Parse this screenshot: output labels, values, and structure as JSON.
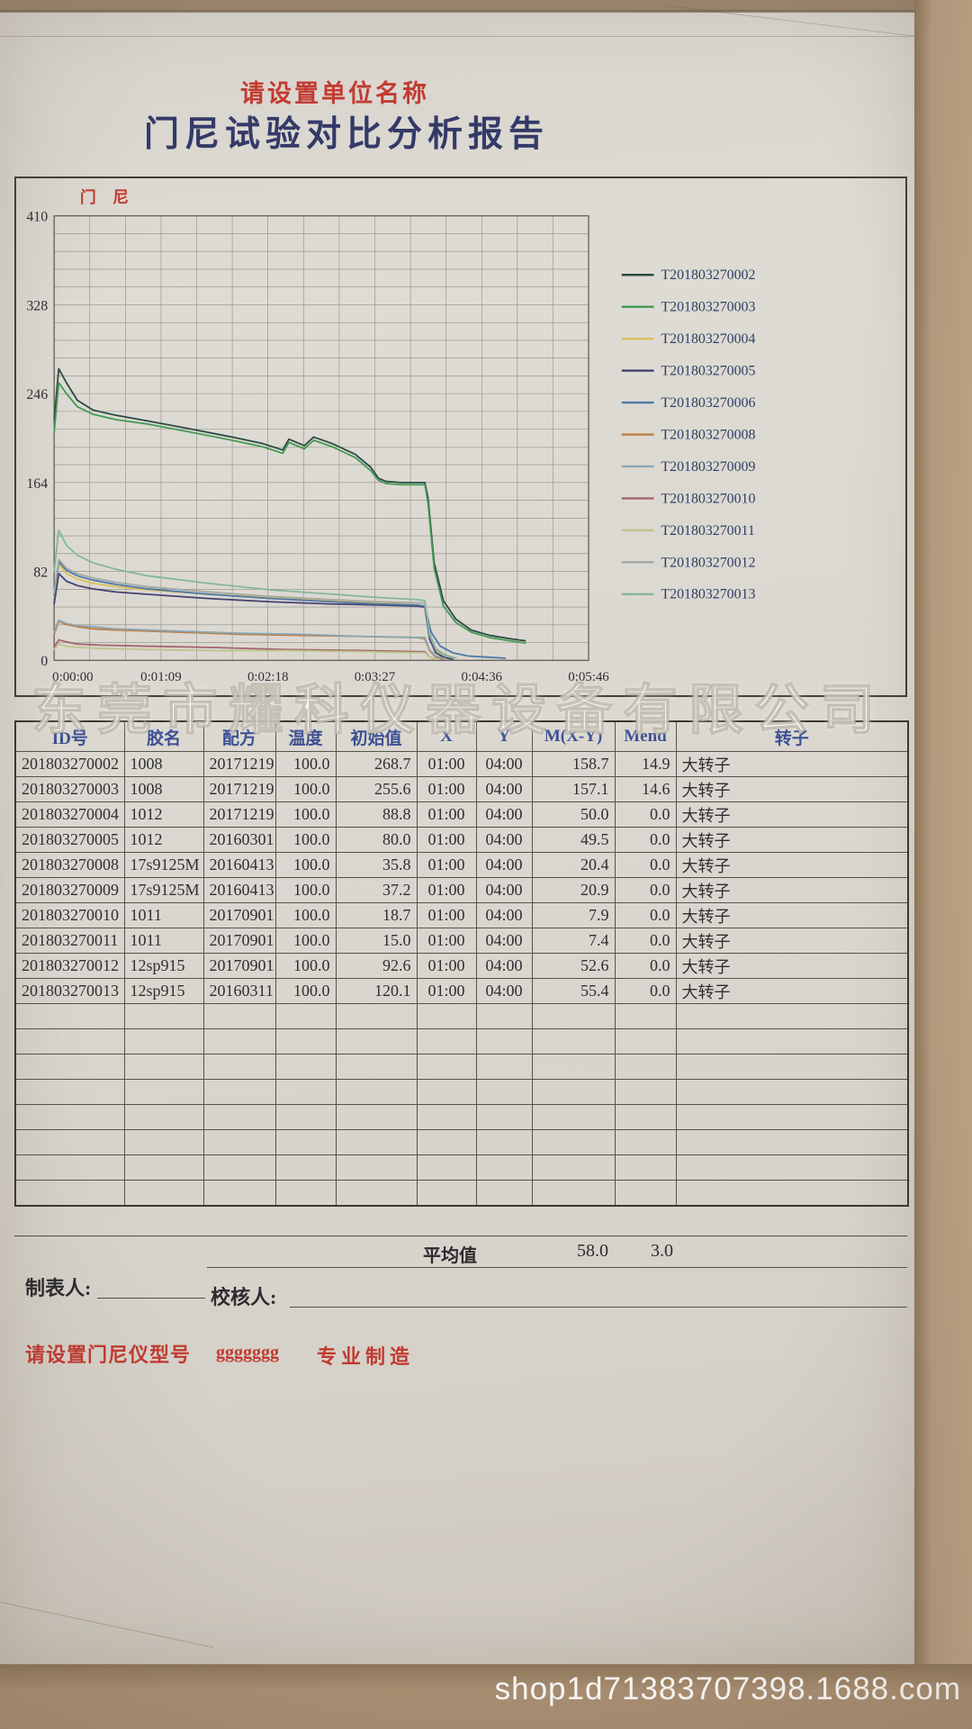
{
  "header": {
    "unit_notice": "请设置单位名称",
    "title": "门尼试验对比分析报告"
  },
  "watermarks": {
    "company": "东莞市耀科仪器设备有限公司",
    "shop": "shop1d71383707398.1688.com"
  },
  "chart_data": {
    "type": "line",
    "title": "门 尼",
    "ylabel": "门 尼",
    "xlabel": "",
    "ylim": [
      0,
      410
    ],
    "yticks": [
      410,
      328,
      246,
      164,
      82,
      0
    ],
    "xtick_labels": [
      "0:00:00",
      "0:01:09",
      "0:02:18",
      "0:03:27",
      "0:04:36",
      "0:05:46"
    ],
    "x_max_seconds": 346,
    "grid": {
      "on": true,
      "cols": 15,
      "rows": 25
    },
    "legend_position": "right",
    "series": [
      {
        "name": "T201803270002",
        "color": "#2a4a41",
        "points": [
          [
            0,
            222
          ],
          [
            3,
            269
          ],
          [
            8,
            256
          ],
          [
            15,
            240
          ],
          [
            25,
            231
          ],
          [
            40,
            226
          ],
          [
            60,
            221
          ],
          [
            90,
            213
          ],
          [
            115,
            206
          ],
          [
            135,
            200
          ],
          [
            148,
            194
          ],
          [
            152,
            204
          ],
          [
            162,
            198
          ],
          [
            168,
            206
          ],
          [
            180,
            200
          ],
          [
            195,
            190
          ],
          [
            205,
            178
          ],
          [
            210,
            168
          ],
          [
            215,
            165
          ],
          [
            225,
            164
          ],
          [
            240,
            164
          ],
          [
            242,
            150
          ],
          [
            246,
            90
          ],
          [
            252,
            55
          ],
          [
            260,
            38
          ],
          [
            270,
            28
          ],
          [
            282,
            23
          ],
          [
            295,
            20
          ],
          [
            305,
            18
          ]
        ]
      },
      {
        "name": "T201803270003",
        "color": "#439a55",
        "points": [
          [
            0,
            210
          ],
          [
            3,
            256
          ],
          [
            8,
            246
          ],
          [
            15,
            234
          ],
          [
            25,
            227
          ],
          [
            40,
            222
          ],
          [
            60,
            218
          ],
          [
            90,
            210
          ],
          [
            115,
            203
          ],
          [
            135,
            197
          ],
          [
            148,
            191
          ],
          [
            152,
            201
          ],
          [
            162,
            195
          ],
          [
            168,
            203
          ],
          [
            180,
            197
          ],
          [
            195,
            187
          ],
          [
            205,
            175
          ],
          [
            210,
            166
          ],
          [
            215,
            163
          ],
          [
            225,
            162
          ],
          [
            240,
            162
          ],
          [
            242,
            145
          ],
          [
            246,
            85
          ],
          [
            252,
            50
          ],
          [
            260,
            35
          ],
          [
            270,
            26
          ],
          [
            282,
            21
          ],
          [
            295,
            18
          ],
          [
            305,
            16
          ]
        ]
      },
      {
        "name": "T201803270004",
        "color": "#dcc05a",
        "points": [
          [
            0,
            58
          ],
          [
            3,
            89
          ],
          [
            8,
            80
          ],
          [
            15,
            75
          ],
          [
            25,
            71
          ],
          [
            40,
            68
          ],
          [
            60,
            65
          ],
          [
            100,
            61
          ],
          [
            140,
            58
          ],
          [
            180,
            55
          ],
          [
            210,
            53
          ],
          [
            235,
            51
          ],
          [
            240,
            50
          ],
          [
            243,
            22
          ],
          [
            247,
            9
          ],
          [
            252,
            4
          ],
          [
            258,
            2
          ]
        ]
      },
      {
        "name": "T201803270005",
        "color": "#454272",
        "points": [
          [
            0,
            52
          ],
          [
            3,
            80
          ],
          [
            8,
            73
          ],
          [
            15,
            69
          ],
          [
            25,
            66
          ],
          [
            40,
            63
          ],
          [
            60,
            61
          ],
          [
            100,
            57
          ],
          [
            140,
            54
          ],
          [
            180,
            52
          ],
          [
            210,
            51
          ],
          [
            235,
            50
          ],
          [
            240,
            49
          ],
          [
            243,
            20
          ],
          [
            247,
            7
          ],
          [
            252,
            3
          ],
          [
            258,
            1
          ]
        ]
      },
      {
        "name": "T201803270006",
        "color": "#4d79a8",
        "points": [
          [
            0,
            60
          ],
          [
            3,
            91
          ],
          [
            8,
            83
          ],
          [
            15,
            78
          ],
          [
            25,
            74
          ],
          [
            40,
            70
          ],
          [
            60,
            66
          ],
          [
            100,
            61
          ],
          [
            140,
            57
          ],
          [
            180,
            54
          ],
          [
            210,
            52
          ],
          [
            235,
            51
          ],
          [
            240,
            50
          ],
          [
            244,
            26
          ],
          [
            250,
            13
          ],
          [
            258,
            7
          ],
          [
            268,
            4
          ],
          [
            280,
            3
          ],
          [
            292,
            2
          ]
        ]
      },
      {
        "name": "T201803270008",
        "color": "#bf7c3e",
        "points": [
          [
            0,
            24
          ],
          [
            3,
            36
          ],
          [
            8,
            33
          ],
          [
            15,
            31
          ],
          [
            25,
            29
          ],
          [
            40,
            28
          ],
          [
            80,
            26
          ],
          [
            120,
            24
          ],
          [
            160,
            23
          ],
          [
            200,
            22
          ],
          [
            235,
            21
          ],
          [
            240,
            20
          ],
          [
            243,
            9
          ],
          [
            247,
            3
          ],
          [
            252,
            1
          ]
        ]
      },
      {
        "name": "T201803270009",
        "color": "#8ba6b5",
        "points": [
          [
            0,
            26
          ],
          [
            3,
            37
          ],
          [
            8,
            34
          ],
          [
            15,
            32
          ],
          [
            25,
            31
          ],
          [
            40,
            29
          ],
          [
            80,
            27
          ],
          [
            120,
            25
          ],
          [
            160,
            24
          ],
          [
            200,
            22
          ],
          [
            235,
            21
          ],
          [
            240,
            21
          ],
          [
            243,
            10
          ],
          [
            247,
            4
          ],
          [
            252,
            2
          ]
        ]
      },
      {
        "name": "T201803270010",
        "color": "#a5646d",
        "points": [
          [
            0,
            12
          ],
          [
            3,
            19
          ],
          [
            8,
            17
          ],
          [
            15,
            15
          ],
          [
            30,
            14
          ],
          [
            60,
            13
          ],
          [
            100,
            12
          ],
          [
            150,
            10
          ],
          [
            200,
            9
          ],
          [
            235,
            8
          ],
          [
            240,
            8
          ],
          [
            243,
            3
          ],
          [
            247,
            1
          ]
        ]
      },
      {
        "name": "T201803270011",
        "color": "#bdc48e",
        "points": [
          [
            0,
            10
          ],
          [
            3,
            15
          ],
          [
            8,
            13
          ],
          [
            15,
            12
          ],
          [
            30,
            11
          ],
          [
            60,
            10
          ],
          [
            100,
            9
          ],
          [
            150,
            9
          ],
          [
            200,
            8
          ],
          [
            235,
            7
          ],
          [
            240,
            7
          ],
          [
            243,
            3
          ],
          [
            247,
            1
          ]
        ]
      },
      {
        "name": "T201803270012",
        "color": "#a4a8a2",
        "points": [
          [
            0,
            62
          ],
          [
            3,
            93
          ],
          [
            8,
            85
          ],
          [
            15,
            80
          ],
          [
            25,
            76
          ],
          [
            40,
            72
          ],
          [
            60,
            68
          ],
          [
            100,
            63
          ],
          [
            140,
            59
          ],
          [
            180,
            56
          ],
          [
            210,
            54
          ],
          [
            235,
            53
          ],
          [
            240,
            53
          ],
          [
            243,
            23
          ],
          [
            247,
            10
          ],
          [
            253,
            4
          ],
          [
            260,
            2
          ]
        ]
      },
      {
        "name": "T201803270013",
        "color": "#84b79a",
        "points": [
          [
            0,
            82
          ],
          [
            3,
            120
          ],
          [
            8,
            106
          ],
          [
            15,
            97
          ],
          [
            25,
            90
          ],
          [
            40,
            84
          ],
          [
            60,
            78
          ],
          [
            100,
            71
          ],
          [
            140,
            65
          ],
          [
            180,
            61
          ],
          [
            210,
            58
          ],
          [
            235,
            56
          ],
          [
            240,
            55
          ],
          [
            243,
            25
          ],
          [
            247,
            11
          ],
          [
            253,
            5
          ],
          [
            260,
            2
          ]
        ]
      }
    ]
  },
  "table": {
    "headers": [
      "ID号",
      "胶名",
      "配方",
      "温度",
      "初始值",
      "X",
      "Y",
      "M(X-Y)",
      "Mend",
      "转子"
    ],
    "column_aligns": [
      "left",
      "left",
      "left",
      "right",
      "right",
      "center",
      "center",
      "right",
      "right",
      "left"
    ],
    "rows": [
      [
        "201803270002",
        "1008",
        "20171219",
        "100.0",
        "268.7",
        "01:00",
        "04:00",
        "158.7",
        "14.9",
        "大转子"
      ],
      [
        "201803270003",
        "1008",
        "20171219",
        "100.0",
        "255.6",
        "01:00",
        "04:00",
        "157.1",
        "14.6",
        "大转子"
      ],
      [
        "201803270004",
        "1012",
        "20171219",
        "100.0",
        "88.8",
        "01:00",
        "04:00",
        "50.0",
        "0.0",
        "大转子"
      ],
      [
        "201803270005",
        "1012",
        "20160301",
        "100.0",
        "80.0",
        "01:00",
        "04:00",
        "49.5",
        "0.0",
        "大转子"
      ],
      [
        "201803270008",
        "17s9125M",
        "20160413",
        "100.0",
        "35.8",
        "01:00",
        "04:00",
        "20.4",
        "0.0",
        "大转子"
      ],
      [
        "201803270009",
        "17s9125M",
        "20160413",
        "100.0",
        "37.2",
        "01:00",
        "04:00",
        "20.9",
        "0.0",
        "大转子"
      ],
      [
        "201803270010",
        "1011",
        "20170901",
        "100.0",
        "18.7",
        "01:00",
        "04:00",
        "7.9",
        "0.0",
        "大转子"
      ],
      [
        "201803270011",
        "1011",
        "20170901",
        "100.0",
        "15.0",
        "01:00",
        "04:00",
        "7.4",
        "0.0",
        "大转子"
      ],
      [
        "201803270012",
        "12sp915",
        "20170901",
        "100.0",
        "92.6",
        "01:00",
        "04:00",
        "52.6",
        "0.0",
        "大转子"
      ],
      [
        "201803270013",
        "12sp915",
        "20160311",
        "100.0",
        "120.1",
        "01:00",
        "04:00",
        "55.4",
        "0.0",
        "大转子"
      ]
    ],
    "empty_row_count": 8
  },
  "summary": {
    "average_label": "平均值",
    "m_average": "58.0",
    "mend_average": "3.0"
  },
  "signatures": {
    "maker_label": "制表人:",
    "checker_label": "校核人:"
  },
  "footer_red": {
    "model_notice": "请设置门尼仪型号",
    "g_text": "ggggggg",
    "made_text": "专业制造"
  }
}
